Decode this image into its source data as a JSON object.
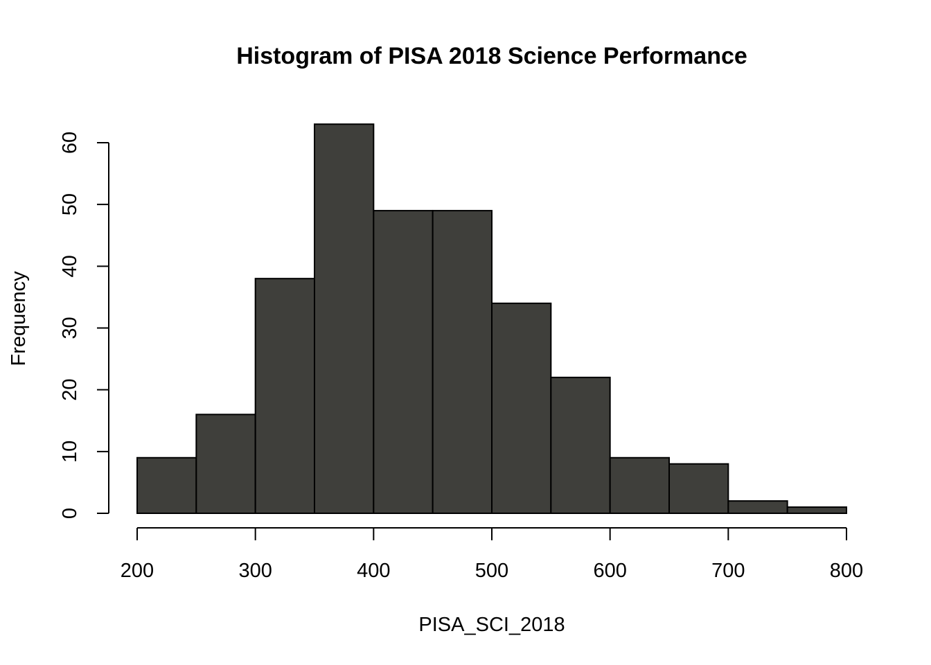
{
  "chart_data": {
    "type": "bar",
    "subtype": "histogram",
    "title": "Histogram of PISA 2018 Science Performance",
    "xlabel": "PISA_SCI_2018",
    "ylabel": "Frequency",
    "bins": [
      {
        "start": 200,
        "end": 250,
        "count": 9
      },
      {
        "start": 250,
        "end": 300,
        "count": 16
      },
      {
        "start": 300,
        "end": 350,
        "count": 38
      },
      {
        "start": 350,
        "end": 400,
        "count": 63
      },
      {
        "start": 400,
        "end": 450,
        "count": 49
      },
      {
        "start": 450,
        "end": 500,
        "count": 49
      },
      {
        "start": 500,
        "end": 550,
        "count": 34
      },
      {
        "start": 550,
        "end": 600,
        "count": 22
      },
      {
        "start": 600,
        "end": 650,
        "count": 9
      },
      {
        "start": 650,
        "end": 700,
        "count": 8
      },
      {
        "start": 700,
        "end": 750,
        "count": 2
      },
      {
        "start": 750,
        "end": 800,
        "count": 1
      }
    ],
    "xlim": [
      200,
      800
    ],
    "ylim": [
      0,
      63
    ],
    "xticks": [
      200,
      300,
      400,
      500,
      600,
      700,
      800
    ],
    "yticks": [
      0,
      10,
      20,
      30,
      40,
      50,
      60
    ],
    "bar_color": "#3f3f3b",
    "grid": false,
    "legend": "none"
  }
}
